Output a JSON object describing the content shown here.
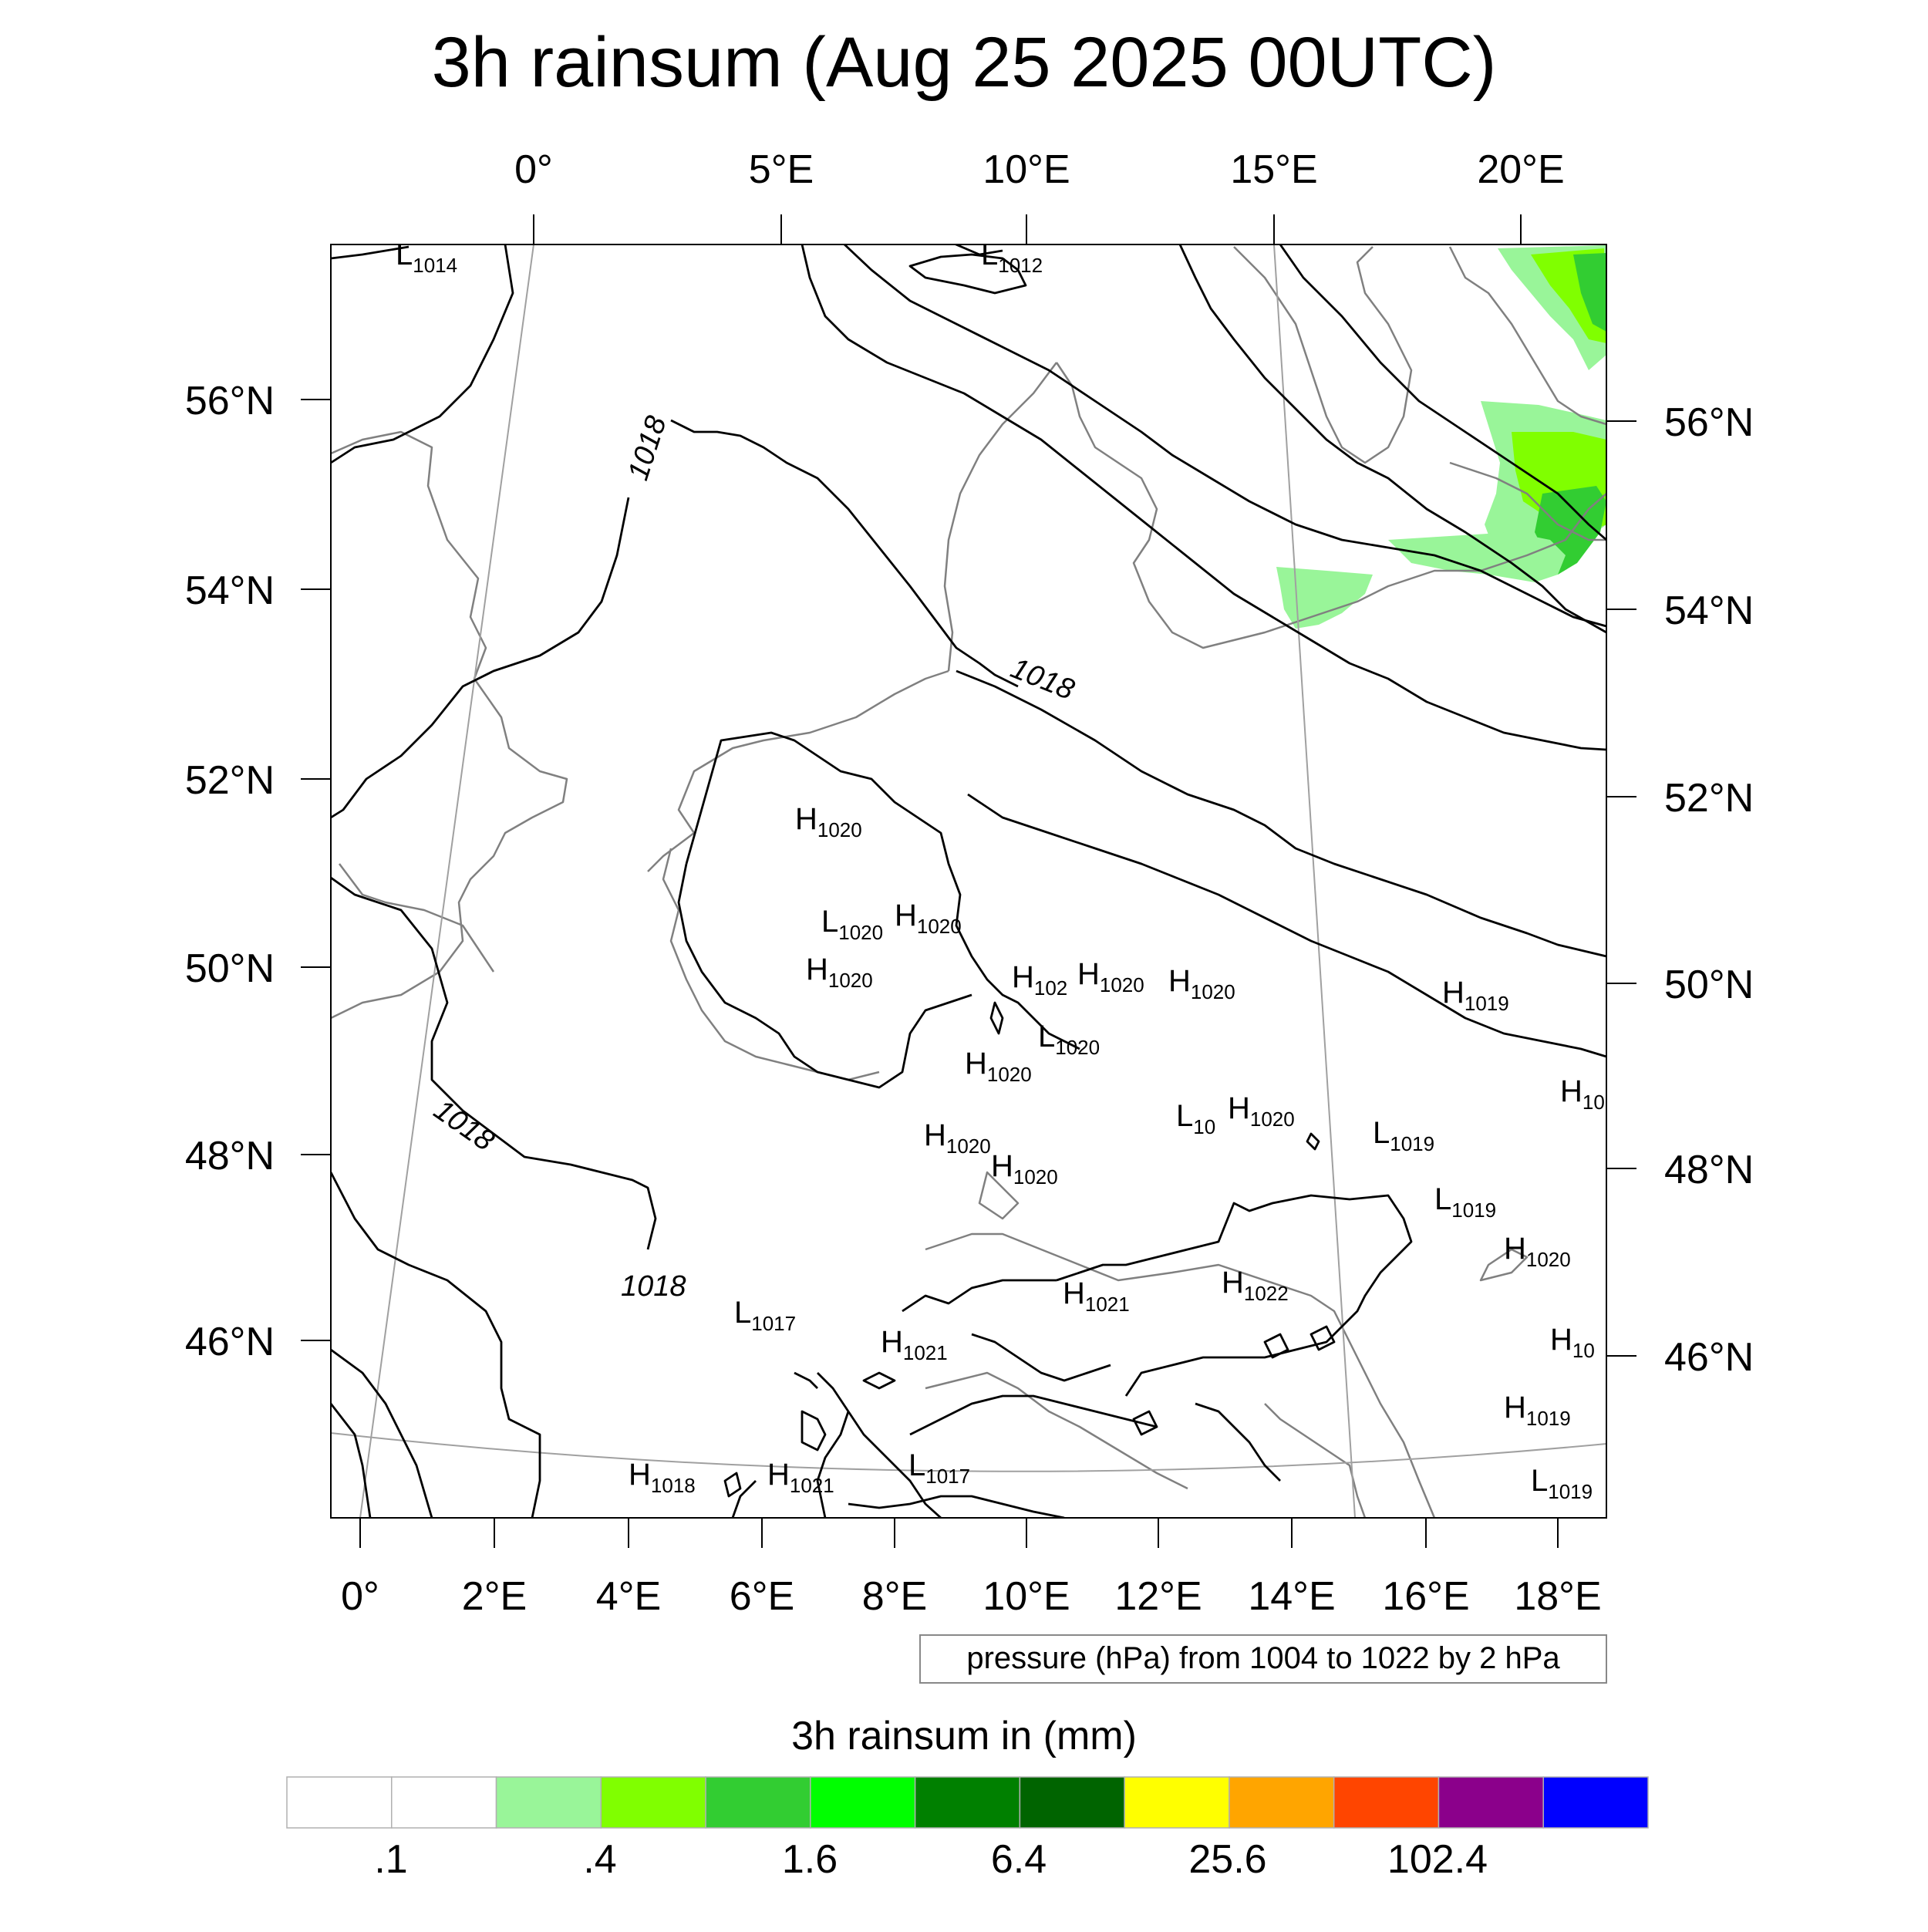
{
  "title": "3h rainsum (Aug 25 2025 00UTC)",
  "top_lon_labels": [
    "0°",
    "5°E",
    "10°E",
    "15°E",
    "20°E"
  ],
  "bottom_lon_labels": [
    "0°",
    "2°E",
    "4°E",
    "6°E",
    "8°E",
    "10°E",
    "12°E",
    "14°E",
    "16°E",
    "18°E"
  ],
  "left_lat_labels": [
    "56°N",
    "54°N",
    "52°N",
    "50°N",
    "48°N",
    "46°N"
  ],
  "right_lat_labels": [
    "56°N",
    "54°N",
    "52°N",
    "50°N",
    "48°N",
    "46°N"
  ],
  "isobar_info": "pressure (hPa) from 1004 to 1022 by 2 hPa",
  "contour_labels": [
    "1018",
    "1018",
    "1018",
    "1018"
  ],
  "pressure_centers": [
    {
      "type": "L",
      "value": "1014"
    },
    {
      "type": "L",
      "value": "1012"
    },
    {
      "type": "H",
      "value": "1020"
    },
    {
      "type": "L",
      "value": "1020"
    },
    {
      "type": "H",
      "value": "1020"
    },
    {
      "type": "H",
      "value": "1020"
    },
    {
      "type": "H",
      "value": "102"
    },
    {
      "type": "H",
      "value": "1020"
    },
    {
      "type": "H",
      "value": "1020"
    },
    {
      "type": "L",
      "value": "1020"
    },
    {
      "type": "H",
      "value": "1020"
    },
    {
      "type": "H",
      "value": "1019"
    },
    {
      "type": "H",
      "value": "10"
    },
    {
      "type": "L",
      "value": "10"
    },
    {
      "type": "H",
      "value": "1020"
    },
    {
      "type": "L",
      "value": "1019"
    },
    {
      "type": "H",
      "value": "1020"
    },
    {
      "type": "H",
      "value": "1020"
    },
    {
      "type": "L",
      "value": "1019"
    },
    {
      "type": "H",
      "value": "1020"
    },
    {
      "type": "H",
      "value": "1022"
    },
    {
      "type": "H",
      "value": "1021"
    },
    {
      "type": "L",
      "value": "1017"
    },
    {
      "type": "H",
      "value": "1021"
    },
    {
      "type": "H",
      "value": "10"
    },
    {
      "type": "H",
      "value": "1019"
    },
    {
      "type": "H",
      "value": "1018"
    },
    {
      "type": "H",
      "value": "1021"
    },
    {
      "type": "L",
      "value": "1017"
    },
    {
      "type": "L",
      "value": "1019"
    }
  ],
  "colorbar": {
    "title": "3h rainsum in (mm)",
    "colors": [
      "#ffffff",
      "#ffffff",
      "#99f599",
      "#80ff00",
      "#32cd32",
      "#00ff00",
      "#008000",
      "#006400",
      "#ffff00",
      "#ffa500",
      "#ff4500",
      "#8b008b",
      "#0000ff"
    ],
    "labels": [
      ".1",
      ".4",
      "1.6",
      "6.4",
      "25.6",
      "102.4"
    ]
  },
  "colors": {
    "isobar": "#000000",
    "coastline": "#808080",
    "grid": "#a0a0a0",
    "rain_light": "#99f599",
    "rain_mid": "#80ff00",
    "rain_heavy": "#32cd32"
  }
}
